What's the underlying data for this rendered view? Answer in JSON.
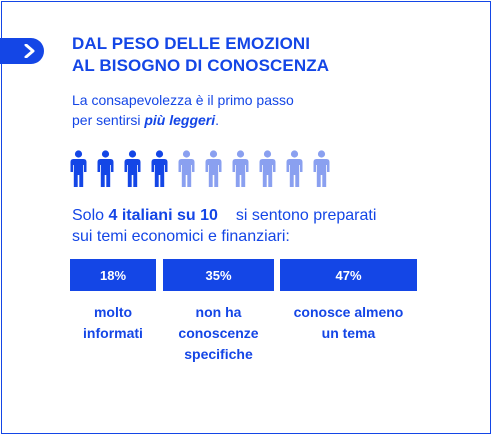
{
  "colors": {
    "accent": "#1446e6",
    "accent_light": "#8aa0f0"
  },
  "header": {
    "icon": "chevron-right-icon",
    "title_line1": "DAL PESO DELLE EMOZIONI",
    "title_line2": "AL BISOGNO DI CONOSCENZA"
  },
  "intro": {
    "line1": "La consapevolezza è il primo passo",
    "line2_prefix": "per sentirsi ",
    "line2_emphasis": "più leggeri",
    "line2_suffix": "."
  },
  "people": {
    "highlighted": 4,
    "total": 10,
    "icon": "person-icon"
  },
  "stat": {
    "prefix": "Solo",
    "bold": "4 italiani su 10",
    "rest": "si sentono preparati",
    "line2": "sui temi economici e finanziari:"
  },
  "bars": [
    {
      "value": "18%",
      "label_lines": [
        "molto",
        "informati"
      ]
    },
    {
      "value": "35%",
      "label_lines": [
        "non ha",
        "conoscenze",
        "specifiche"
      ]
    },
    {
      "value": "47%",
      "label_lines": [
        "conosce almeno",
        "un tema"
      ]
    }
  ]
}
